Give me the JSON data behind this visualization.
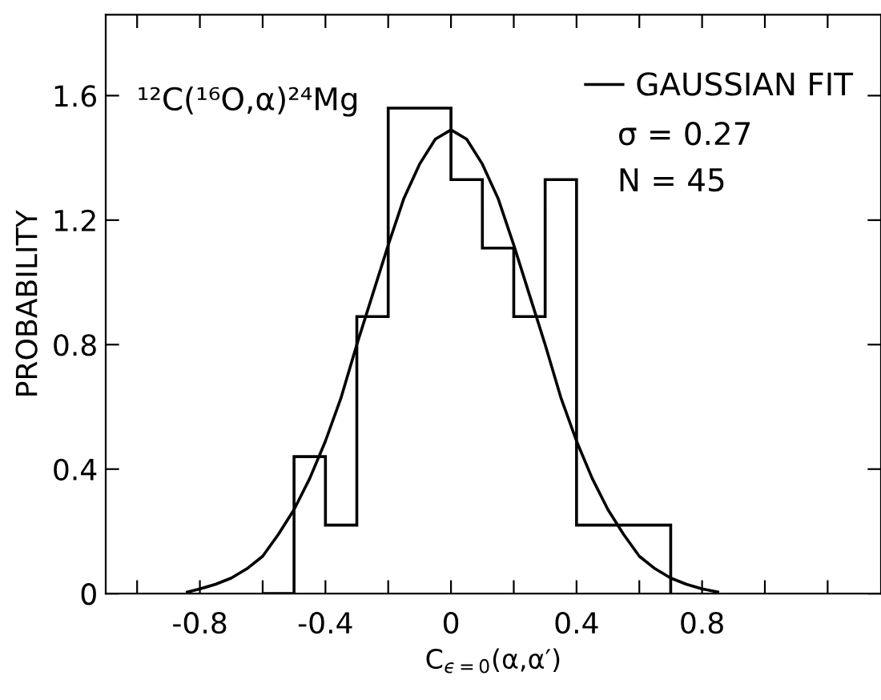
{
  "chart_data": {
    "type": "histogram",
    "xlabel": "C$_{ϵ=0}$(α,α′)",
    "ylabel": "PROBABILITY",
    "annotations": [
      "¹²C(¹⁶O,α)²⁴Mg",
      "σ = 0.27",
      "N = 45"
    ],
    "series": [
      {
        "color": "#000000",
        "bins": [
          -0.6,
          -0.5,
          -0.4,
          -0.3,
          -0.2,
          -0.1,
          0.0,
          0.1,
          0.2,
          0.3,
          0.4,
          0.5,
          0.6,
          0.7
        ],
        "values": [
          0,
          0.44,
          0.22,
          0.89,
          1.56,
          1.56,
          1.33,
          1.11,
          0.89,
          1.33,
          0.22,
          0.22,
          0.22
        ]
      },
      {
        "type": "line",
        "name": "GAUSSIAN FIT",
        "color": "#000000",
        "x": [
          -0.84,
          -0.8,
          -0.75,
          -0.7,
          -0.65,
          -0.6,
          -0.55,
          -0.5,
          -0.45,
          -0.4,
          -0.35,
          -0.3,
          -0.25,
          -0.2,
          -0.15,
          -0.1,
          -0.05,
          0.0,
          0.05,
          0.1,
          0.15,
          0.2,
          0.25,
          0.3,
          0.35,
          0.4,
          0.45,
          0.5,
          0.55,
          0.6,
          0.65,
          0.7,
          0.75,
          0.8,
          0.85
        ],
        "values": [
          0.005,
          0.015,
          0.03,
          0.05,
          0.08,
          0.12,
          0.19,
          0.27,
          0.37,
          0.49,
          0.63,
          0.8,
          0.96,
          1.12,
          1.27,
          1.38,
          1.46,
          1.49,
          1.46,
          1.38,
          1.27,
          1.12,
          0.96,
          0.8,
          0.63,
          0.49,
          0.37,
          0.27,
          0.19,
          0.12,
          0.08,
          0.05,
          0.03,
          0.015,
          0.005
        ]
      }
    ],
    "xlim": [
      -1.1,
      1.37
    ],
    "ylim": [
      0,
      1.86
    ],
    "xticks": [
      {
        "value": -1.0,
        "label": null
      },
      {
        "value": -0.8,
        "label": "-0.8"
      },
      {
        "value": -0.6,
        "label": null
      },
      {
        "value": -0.4,
        "label": "-0.4"
      },
      {
        "value": -0.2,
        "label": null
      },
      0,
      {
        "value": 0.2,
        "label": null
      },
      0.4,
      {
        "value": 0.6,
        "label": null
      },
      0.8,
      {
        "value": 1.0,
        "label": null
      },
      {
        "value": 1.2,
        "label": null
      }
    ],
    "yticks": [
      0,
      0.4,
      0.8,
      1.2,
      1.6
    ],
    "legend": "top right",
    "grid": false
  }
}
